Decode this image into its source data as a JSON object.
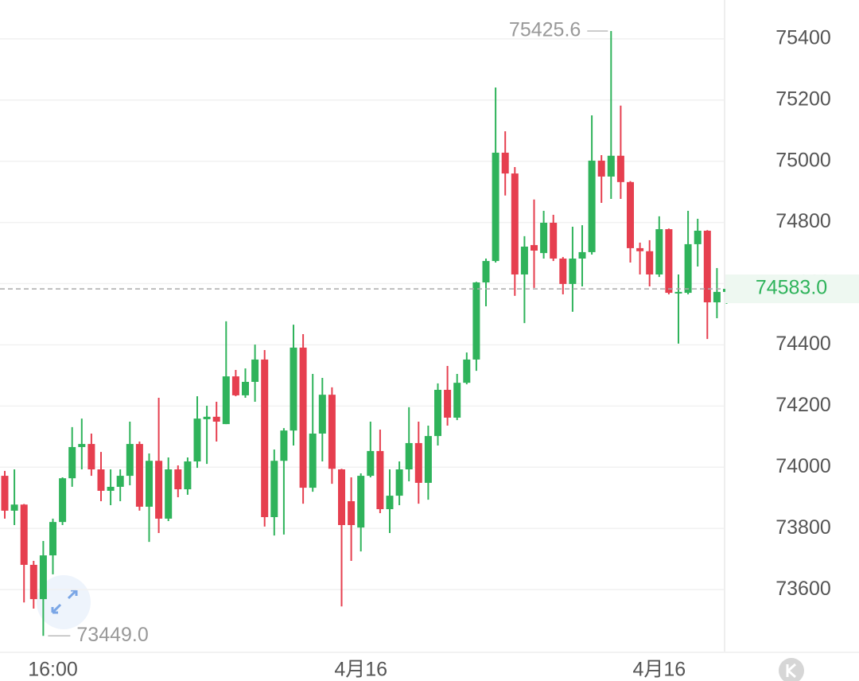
{
  "chart_data": {
    "type": "candlestick",
    "categories": [
      null,
      null,
      null,
      null,
      null,
      "16:00",
      null,
      null,
      null,
      null,
      null,
      null,
      null,
      null,
      null,
      null,
      null,
      null,
      null,
      null,
      null,
      null,
      null,
      null,
      null,
      null,
      null,
      null,
      null,
      null,
      null,
      null,
      null,
      null,
      null,
      null,
      null,
      "4月16",
      null,
      null,
      null,
      null,
      null,
      null,
      null,
      null,
      null,
      null,
      null,
      null,
      null,
      null,
      null,
      null,
      null,
      null,
      null,
      null,
      null,
      null,
      null,
      null,
      null,
      null,
      null,
      null,
      null,
      null,
      "4月16",
      null,
      null,
      null,
      null,
      null,
      null,
      null
    ],
    "open": [
      73972,
      73858,
      73878,
      73681,
      73569,
      73712,
      73821,
      73964,
      74066,
      74076,
      73993,
      73923,
      73936,
      73972,
      74076,
      73871,
      74021,
      73832,
      73993,
      73928,
      74019,
      74157,
      74165,
      74141,
      74297,
      74235,
      74279,
      74352,
      73837,
      74021,
      74120,
      74391,
      73933,
      74110,
      74237,
      73993,
      73889,
      73803,
      73972,
      74053,
      73863,
      73907,
      73993,
      74079,
      73949,
      74102,
      74253,
      74162,
      74276,
      74352,
      74604,
      74674,
      75028,
      74960,
      74630,
      74726,
      74700,
      74799,
      74682,
      74599,
      74682,
      74703,
      75002,
      74950,
      75018,
      74932,
      74716,
      74706,
      74630,
      74778,
      74568,
      74570,
      74729,
      74773,
      74539,
      74573
    ],
    "high": [
      73988,
      73993,
      73880,
      73694,
      73759,
      73832,
      73967,
      74131,
      74159,
      74110,
      74050,
      73993,
      73993,
      74149,
      74084,
      74045,
      74227,
      74032,
      74006,
      74032,
      74232,
      74201,
      74214,
      74477,
      74318,
      74323,
      74401,
      74383,
      74058,
      74128,
      74466,
      74435,
      74305,
      74292,
      74261,
      73995,
      73967,
      73980,
      74149,
      74123,
      73993,
      74019,
      74196,
      74149,
      74136,
      74274,
      74331,
      74305,
      74375,
      74606,
      74682,
      75241,
      75098,
      74981,
      74755,
      74875,
      74838,
      74825,
      74687,
      74786,
      74791,
      75150,
      75020,
      75425.6,
      75182,
      74935,
      74734,
      74742,
      74820,
      74780,
      74630,
      74838,
      74812,
      74775,
      74651,
      74609
    ],
    "low": [
      73832,
      73811,
      73558,
      73538,
      73449,
      73650,
      73811,
      73936,
      73993,
      73972,
      73889,
      73876,
      73889,
      73941,
      73858,
      73756,
      73785,
      73824,
      73902,
      73910,
      73998,
      74011,
      74084,
      74141,
      74232,
      74227,
      74214,
      73806,
      73777,
      73780,
      74071,
      73881,
      73920,
      74019,
      73946,
      73545,
      73694,
      73725,
      73967,
      73850,
      73785,
      73876,
      73954,
      73881,
      73894,
      74071,
      74136,
      74154,
      74271,
      74315,
      74526,
      74669,
      74888,
      74560,
      74471,
      74586,
      74682,
      74674,
      74565,
      74508,
      74591,
      74695,
      74864,
      74877,
      74877,
      74669,
      74630,
      74591,
      74622,
      74565,
      74404,
      74565,
      74656,
      74419,
      74487,
      74534
    ],
    "close": [
      73858,
      73878,
      73681,
      73569,
      73712,
      73821,
      73964,
      74066,
      74076,
      73993,
      73923,
      73936,
      73972,
      74076,
      73871,
      74021,
      73832,
      73993,
      73928,
      74019,
      74159,
      74165,
      74149,
      74297,
      74235,
      74279,
      74352,
      73837,
      74021,
      74120,
      74391,
      73933,
      74110,
      74237,
      73995,
      73811,
      73811,
      73972,
      74053,
      73863,
      73907,
      73993,
      74079,
      73949,
      74102,
      74253,
      74162,
      74276,
      74352,
      74604,
      74674,
      75028,
      74960,
      74630,
      74721,
      74708,
      74799,
      74682,
      74599,
      74682,
      74703,
      75002,
      74950,
      75018,
      74932,
      74716,
      74706,
      74630,
      74778,
      74570,
      74573,
      74729,
      74773,
      74539,
      74573,
      74583
    ],
    "up_color": "#2fb35b",
    "down_color": "#e63f4f",
    "ylim": [
      73395,
      75527
    ],
    "yticks": [
      73600,
      73800,
      74000,
      74200,
      74400,
      74600,
      74800,
      75000,
      75200,
      75400
    ],
    "grid": true,
    "last_price": {
      "value": 74583,
      "label": "74583.0"
    },
    "max_marker": {
      "value": 75425.6,
      "label": "75425.6"
    },
    "min_marker": {
      "value": 73449,
      "label": "73449.0"
    }
  }
}
